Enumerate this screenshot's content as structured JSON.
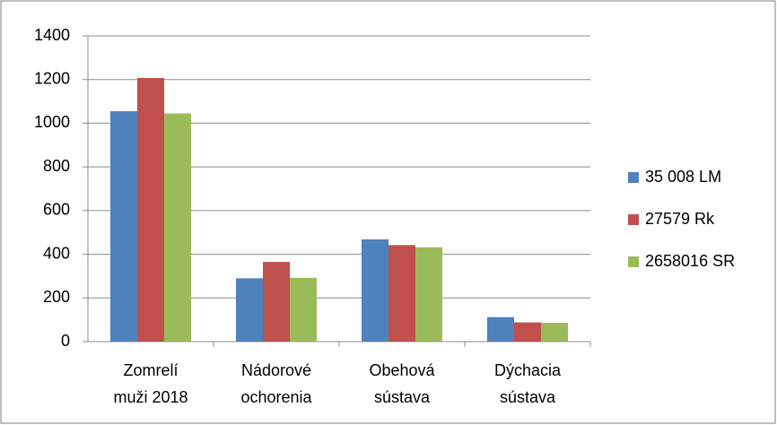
{
  "chart_data": {
    "type": "bar",
    "categories": [
      [
        "Zomrelí",
        "muži 2018"
      ],
      [
        "Nádorové",
        "ochorenia"
      ],
      [
        "Obehová",
        "sústava"
      ],
      [
        "Dýchacia",
        "sústava"
      ]
    ],
    "series": [
      {
        "name": "35 008 LM",
        "color": "#4f81bd",
        "values": [
          1055,
          290,
          468,
          112
        ]
      },
      {
        "name": "27579 Rk",
        "color": "#c0504d",
        "values": [
          1207,
          365,
          442,
          88
        ]
      },
      {
        "name": "2658016 SR",
        "color": "#9bbb59",
        "values": [
          1045,
          292,
          432,
          86
        ]
      }
    ],
    "ylim": [
      0,
      1400
    ],
    "yticks": [
      0,
      200,
      400,
      600,
      800,
      1000,
      1200,
      1400
    ],
    "grid": true,
    "legend": "right"
  }
}
